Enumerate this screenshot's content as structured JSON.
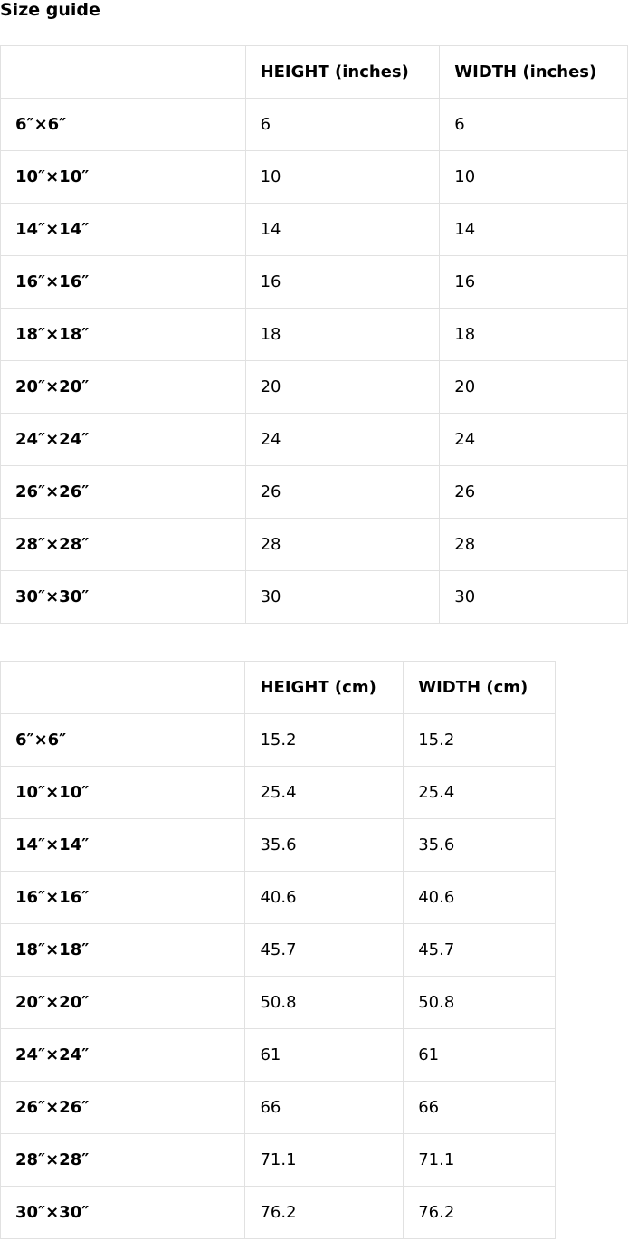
{
  "title": "Size guide",
  "inches_table": {
    "headers": [
      "",
      "HEIGHT (inches)",
      "WIDTH (inches)"
    ],
    "rows": [
      [
        "6″×6″",
        "6",
        "6"
      ],
      [
        "10″×10″",
        "10",
        "10"
      ],
      [
        "14″×14″",
        "14",
        "14"
      ],
      [
        "16″×16″",
        "16",
        "16"
      ],
      [
        "18″×18″",
        "18",
        "18"
      ],
      [
        "20″×20″",
        "20",
        "20"
      ],
      [
        "24″×24″",
        "24",
        "24"
      ],
      [
        "26″×26″",
        "26",
        "26"
      ],
      [
        "28″×28″",
        "28",
        "28"
      ],
      [
        "30″×30″",
        "30",
        "30"
      ]
    ]
  },
  "cm_table": {
    "headers": [
      "",
      "HEIGHT (cm)",
      "WIDTH (cm)"
    ],
    "rows": [
      [
        "6″×6″",
        "15.2",
        "15.2"
      ],
      [
        "10″×10″",
        "25.4",
        "25.4"
      ],
      [
        "14″×14″",
        "35.6",
        "35.6"
      ],
      [
        "16″×16″",
        "40.6",
        "40.6"
      ],
      [
        "18″×18″",
        "45.7",
        "45.7"
      ],
      [
        "20″×20″",
        "50.8",
        "50.8"
      ],
      [
        "24″×24″",
        "61",
        "61"
      ],
      [
        "26″×26″",
        "66",
        "66"
      ],
      [
        "28″×28″",
        "71.1",
        "71.1"
      ],
      [
        "30″×30″",
        "76.2",
        "76.2"
      ]
    ]
  }
}
